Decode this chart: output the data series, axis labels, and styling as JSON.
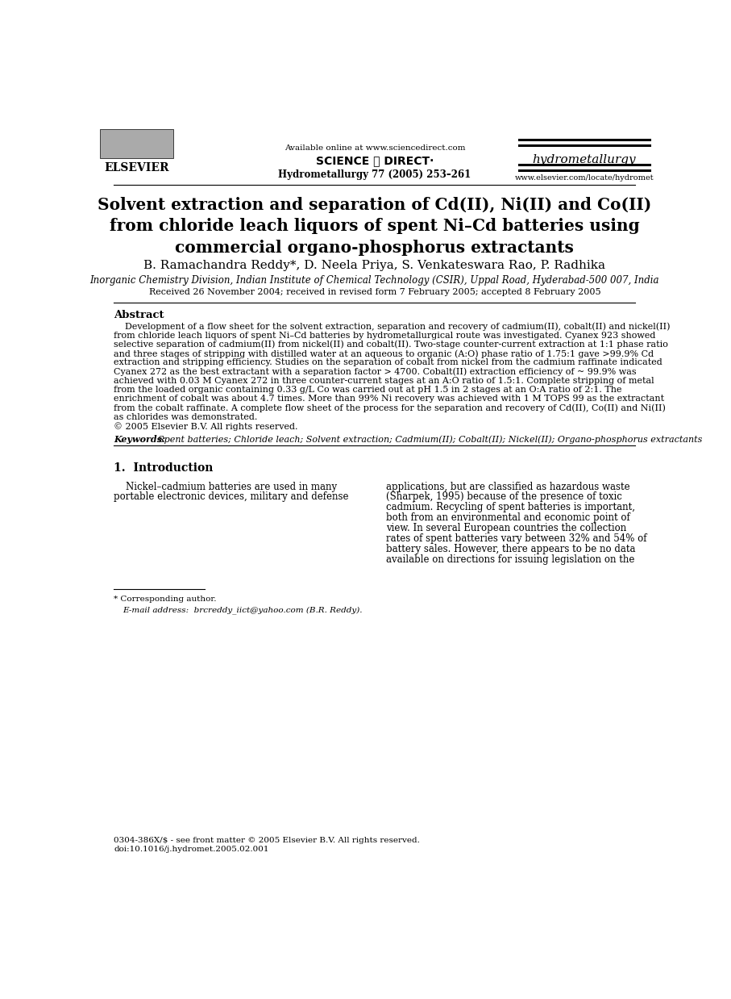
{
  "bg_color": "#ffffff",
  "page_width": 9.07,
  "page_height": 12.38,
  "dpi": 100,
  "header": {
    "available_online": "Available online at www.sciencedirect.com",
    "sciencedirect_text": "SCIENCE ⓐ DIRECT·",
    "journal_name": "hydrometallurgy",
    "journal_issue": "Hydrometallurgy 77 (2005) 253–261",
    "journal_url": "www.elsevier.com/locate/hydromet",
    "elsevier_text": "ELSEVIER"
  },
  "title": "Solvent extraction and separation of Cd(II), Ni(II) and Co(II)\nfrom chloride leach liquors of spent Ni–Cd batteries using\ncommercial organo-phosphorus extractants",
  "authors": "B. Ramachandra Reddy*, D. Neela Priya, S. Venkateswara Rao, P. Radhika",
  "affiliation": "Inorganic Chemistry Division, Indian Institute of Chemical Technology (CSIR), Uppal Road, Hyderabad-500 007, India",
  "received": "Received 26 November 2004; received in revised form 7 February 2005; accepted 8 February 2005",
  "abstract_header": "Abstract",
  "abstract_lines": [
    "    Development of a flow sheet for the solvent extraction, separation and recovery of cadmium(II), cobalt(II) and nickel(II)",
    "from chloride leach liquors of spent Ni–Cd batteries by hydrometallurgical route was investigated. Cyanex 923 showed",
    "selective separation of cadmium(II) from nickel(II) and cobalt(II). Two-stage counter-current extraction at 1:1 phase ratio",
    "and three stages of stripping with distilled water at an aqueous to organic (A:O) phase ratio of 1.75:1 gave >99.9% Cd",
    "extraction and stripping efficiency. Studies on the separation of cobalt from nickel from the cadmium raffinate indicated",
    "Cyanex 272 as the best extractant with a separation factor > 4700. Cobalt(II) extraction efficiency of ~ 99.9% was",
    "achieved with 0.03 M Cyanex 272 in three counter-current stages at an A:O ratio of 1.5:1. Complete stripping of metal",
    "from the loaded organic containing 0.33 g/L Co was carried out at pH 1.5 in 2 stages at an O:A ratio of 2:1. The",
    "enrichment of cobalt was about 4.7 times. More than 99% Ni recovery was achieved with 1 M TOPS 99 as the extractant",
    "from the cobalt raffinate. A complete flow sheet of the process for the separation and recovery of Cd(II), Co(II) and Ni(II)",
    "as chlorides was demonstrated.",
    "© 2005 Elsevier B.V. All rights reserved."
  ],
  "keywords_label": "Keywords:",
  "keywords_text": "Spent batteries; Chloride leach; Solvent extraction; Cadmium(II); Cobalt(II); Nickel(II); Organo-phosphorus extractants",
  "section1_header": "1.  Introduction",
  "intro_left_lines": [
    "    Nickel–cadmium batteries are used in many",
    "portable electronic devices, military and defense"
  ],
  "intro_right_lines": [
    "applications, but are classified as hazardous waste",
    "(Sharpek, 1995) because of the presence of toxic",
    "cadmium. Recycling of spent batteries is important,",
    "both from an environmental and economic point of",
    "view. In several European countries the collection",
    "rates of spent batteries vary between 32% and 54% of",
    "battery sales. However, there appears to be no data",
    "available on directions for issuing legislation on the"
  ],
  "footnote_star": "* Corresponding author.",
  "footnote_email": "E-mail address:  brcreddy_iict@yahoo.com (B.R. Reddy).",
  "footer_issn": "0304-386X/$ - see front matter © 2005 Elsevier B.V. All rights reserved.",
  "footer_doi": "doi:10.1016/j.hydromet.2005.02.001"
}
